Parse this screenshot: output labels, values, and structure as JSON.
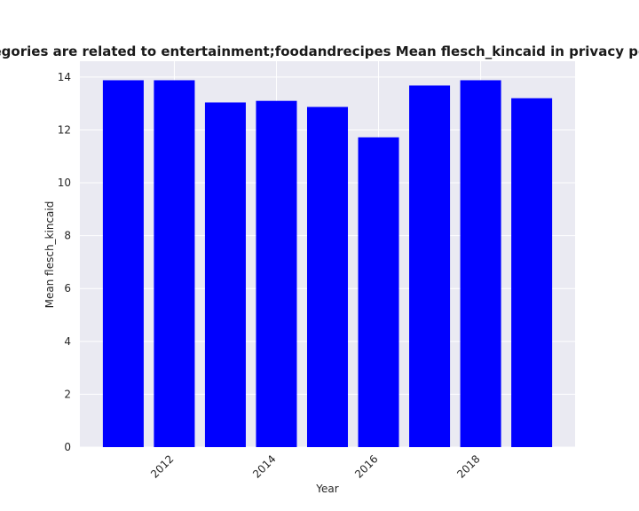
{
  "chart_data": {
    "type": "bar",
    "title": "categories are related to entertainment;foodandrecipes Mean flesch_kincaid in privacy policies",
    "xlabel": "Year",
    "ylabel": "Mean flesch_kincaid",
    "x": [
      2011,
      2012,
      2013,
      2014,
      2015,
      2016,
      2017,
      2018,
      2019
    ],
    "values": [
      13.88,
      13.88,
      13.04,
      13.1,
      12.87,
      11.72,
      13.68,
      13.88,
      13.2
    ],
    "xticks": [
      2012,
      2014,
      2016,
      2018
    ],
    "xtick_labels": [
      "2012",
      "2014",
      "2016",
      "2018"
    ],
    "xlim": [
      2010.15,
      2019.85
    ],
    "ylim": [
      0,
      14.6
    ],
    "yticks": [
      0,
      2,
      4,
      6,
      8,
      10,
      12,
      14
    ],
    "ytick_labels": [
      "0",
      "2",
      "4",
      "6",
      "8",
      "10",
      "12",
      "14"
    ],
    "bar_color": "#0000ff",
    "background_color": "#eaeaf2",
    "grid_color": "#ffffff",
    "grid": true
  }
}
